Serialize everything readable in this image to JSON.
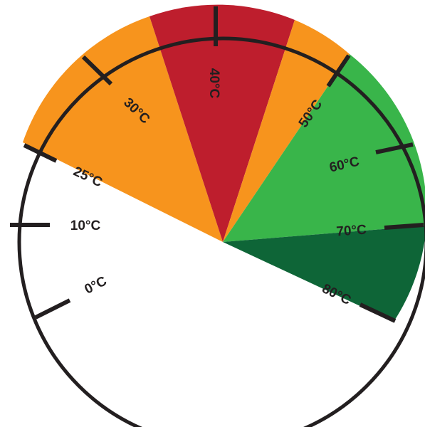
{
  "dial": {
    "labels": {
      "t0": "0°C",
      "t10": "10°C",
      "t25": "25°C",
      "t30": "30°C",
      "t40": "40°C",
      "t50": "50°C",
      "t60": "60°C",
      "t70": "70°C",
      "t80": "80°C"
    },
    "colors": {
      "white": "#ffffff",
      "orange": "#f7941d",
      "red": "#be1e2d",
      "green": "#39b54a",
      "dark_green": "#0e6537",
      "outline": "#231f20"
    }
  }
}
